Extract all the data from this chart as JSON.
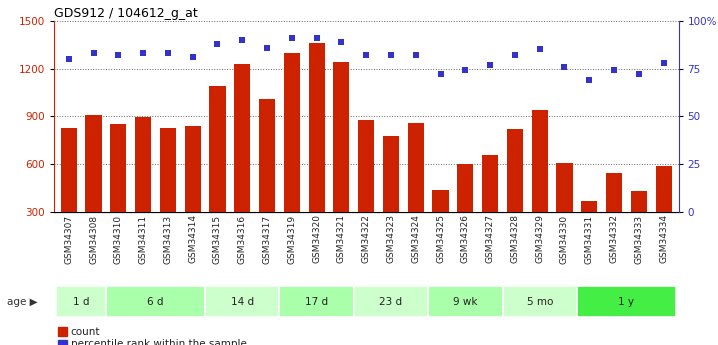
{
  "title": "GDS912 / 104612_g_at",
  "categories": [
    "GSM34307",
    "GSM34308",
    "GSM34310",
    "GSM34311",
    "GSM34313",
    "GSM34314",
    "GSM34315",
    "GSM34316",
    "GSM34317",
    "GSM34319",
    "GSM34320",
    "GSM34321",
    "GSM34322",
    "GSM34323",
    "GSM34324",
    "GSM34325",
    "GSM34326",
    "GSM34327",
    "GSM34328",
    "GSM34329",
    "GSM34330",
    "GSM34331",
    "GSM34332",
    "GSM34333",
    "GSM34334"
  ],
  "bar_values": [
    830,
    910,
    850,
    895,
    830,
    840,
    1090,
    1230,
    1010,
    1300,
    1360,
    1240,
    875,
    780,
    860,
    440,
    600,
    660,
    820,
    940,
    610,
    370,
    545,
    430,
    590
  ],
  "scatter_values": [
    80,
    83,
    82,
    83,
    83,
    81,
    88,
    90,
    86,
    91,
    91,
    89,
    82,
    82,
    82,
    72,
    74,
    77,
    82,
    85,
    76,
    69,
    74,
    72,
    78
  ],
  "bar_color": "#cc2200",
  "scatter_color": "#3333cc",
  "ylim_left": [
    300,
    1500
  ],
  "ylim_right": [
    0,
    100
  ],
  "yticks_left": [
    300,
    600,
    900,
    1200,
    1500
  ],
  "yticks_right": [
    0,
    25,
    50,
    75,
    100
  ],
  "yticklabels_right": [
    "0",
    "25",
    "50",
    "75",
    "100%"
  ],
  "age_groups": [
    {
      "label": "1 d",
      "indices": [
        0,
        1
      ],
      "color": "#ccffcc"
    },
    {
      "label": "6 d",
      "indices": [
        2,
        3,
        4,
        5
      ],
      "color": "#aaffaa"
    },
    {
      "label": "14 d",
      "indices": [
        6,
        7,
        8
      ],
      "color": "#ccffcc"
    },
    {
      "label": "17 d",
      "indices": [
        9,
        10,
        11
      ],
      "color": "#aaffaa"
    },
    {
      "label": "23 d",
      "indices": [
        12,
        13,
        14
      ],
      "color": "#ccffcc"
    },
    {
      "label": "9 wk",
      "indices": [
        15,
        16,
        17
      ],
      "color": "#aaffaa"
    },
    {
      "label": "5 mo",
      "indices": [
        18,
        19,
        20
      ],
      "color": "#ccffcc"
    },
    {
      "label": "1 y",
      "indices": [
        21,
        22,
        23,
        24
      ],
      "color": "#44ee44"
    }
  ],
  "xtick_bg": "#cccccc",
  "grid_color": "#666666",
  "background_color": "#ffffff",
  "bar_width": 0.65,
  "legend_items": [
    {
      "label": "count",
      "color": "#cc2200"
    },
    {
      "label": "percentile rank within the sample",
      "color": "#3333cc"
    }
  ]
}
